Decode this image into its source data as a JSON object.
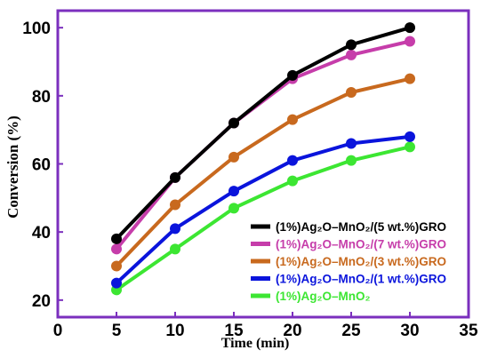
{
  "chart_data": {
    "type": "line",
    "xlabel": "Time (min)",
    "ylabel": "Conversion (%)",
    "xlim": [
      0,
      35
    ],
    "ylim": [
      15,
      105
    ],
    "xticks": [
      "0",
      "5",
      "10",
      "15",
      "20",
      "25",
      "30",
      "35"
    ],
    "yticks": [
      "20",
      "40",
      "60",
      "80",
      "100"
    ],
    "x": [
      5,
      10,
      15,
      20,
      25,
      30
    ],
    "grid": false,
    "legend_position": "bottom-right",
    "frame_color": "#7B2FBE",
    "series": [
      {
        "name": "(1%)Ag₂O–MnO₂/(5 wt.%)GRO",
        "color": "#000000",
        "values": [
          38,
          56,
          72,
          86,
          95,
          100
        ]
      },
      {
        "name": "(1%)Ag₂O–MnO₂/(7 wt.%)GRO",
        "color": "#C63DAA",
        "values": [
          35,
          56,
          72,
          85,
          92,
          96
        ]
      },
      {
        "name": "(1%)Ag₂O–MnO₂/(3 wt.%)GRO",
        "color": "#C8691E",
        "values": [
          30,
          48,
          62,
          73,
          81,
          85
        ]
      },
      {
        "name": "(1%)Ag₂O–MnO₂/(1 wt.%)GRO",
        "color": "#0A14DC",
        "values": [
          25,
          41,
          52,
          61,
          66,
          68
        ]
      },
      {
        "name": "(1%)Ag₂O–MnO₂",
        "color": "#3CE632",
        "values": [
          23,
          35,
          47,
          55,
          61,
          65
        ]
      }
    ]
  }
}
